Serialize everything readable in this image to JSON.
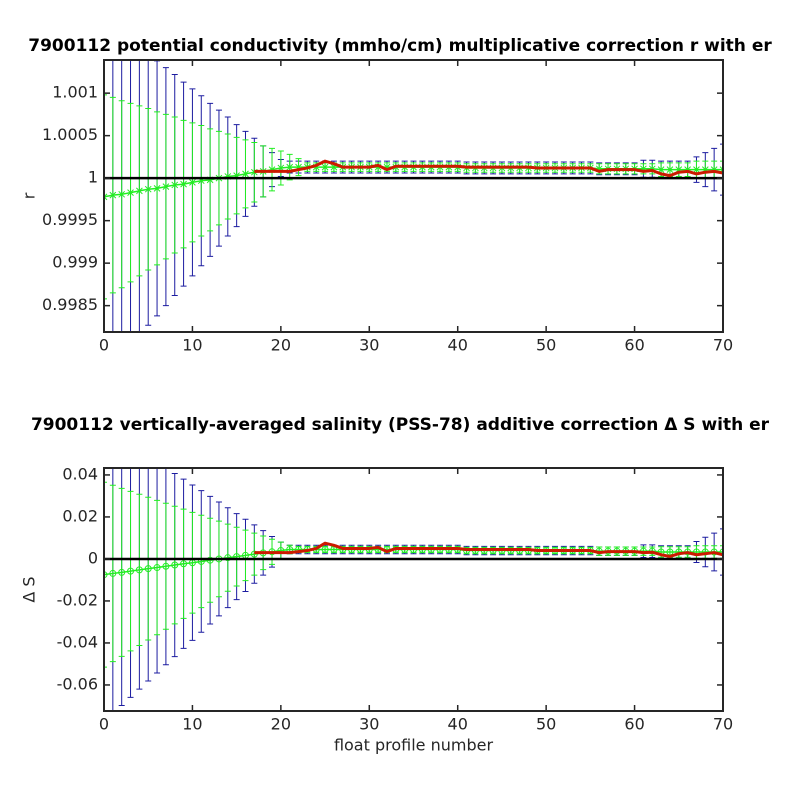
{
  "chart_data": [
    {
      "type": "errorbar",
      "title": "7900112 potential conductivity (mmho/cm) multiplicative correction r with er",
      "ylabel": "r",
      "x": [
        0,
        1,
        2,
        3,
        4,
        5,
        6,
        7,
        8,
        9,
        10,
        11,
        12,
        13,
        14,
        15,
        16,
        17,
        18,
        19,
        20,
        21,
        22,
        23,
        24,
        25,
        26,
        27,
        28,
        29,
        30,
        31,
        32,
        33,
        34,
        35,
        36,
        37,
        38,
        39,
        40,
        41,
        42,
        43,
        44,
        45,
        46,
        47,
        48,
        49,
        50,
        51,
        52,
        53,
        54,
        55,
        56,
        57,
        58,
        59,
        60,
        61,
        62,
        63,
        64,
        65,
        66,
        67,
        68,
        69,
        70
      ],
      "xlim": [
        0,
        70
      ],
      "xticks": [
        0,
        10,
        20,
        30,
        40,
        50,
        60,
        70
      ],
      "ylim": [
        0.99819,
        1.00139
      ],
      "yticks": [
        0.9985,
        0.999,
        0.9995,
        1,
        1.0005,
        1.001
      ],
      "hline": 1,
      "series": [
        {
          "style": "errorbar",
          "color": "#1c1ca0",
          "values": [
            0.99978,
            0.9998,
            0.99981,
            0.99983,
            0.99985,
            0.99987,
            0.99988,
            0.9999,
            0.99992,
            0.99993,
            0.99995,
            0.99997,
            0.99998,
            1,
            1.00002,
            1.00003,
            1.00005,
            1.00007,
            1.00008,
            1.0001,
            1.00012,
            1.00013,
            1.00013,
            1.00013,
            1.00013,
            1.00013,
            1.00013,
            1.00013,
            1.00013,
            1.00013,
            1.00013,
            1.00013,
            1.00013,
            1.00013,
            1.00013,
            1.00013,
            1.00013,
            1.00013,
            1.00013,
            1.00013,
            1.00013,
            1.00012,
            1.00012,
            1.00012,
            1.00012,
            1.00012,
            1.00012,
            1.00012,
            1.00012,
            1.00012,
            1.00012,
            1.00012,
            1.00012,
            1.00012,
            1.00012,
            1.00012,
            1.00011,
            1.00011,
            1.00011,
            1.00011,
            1.00011,
            1.00011,
            1.00011,
            1.0001,
            1.0001,
            1.0001,
            1.0001,
            1.0001,
            1.0001,
            1.0001,
            1.0001
          ],
          "errors": [
            0.0021,
            0.002,
            0.0019,
            0.0018,
            0.0017,
            0.0016,
            0.0015,
            0.0014,
            0.0013,
            0.0012,
            0.0011,
            0.001,
            0.0009,
            0.0008,
            0.0007,
            0.0006,
            0.0005,
            0.0004,
            0.0003,
            0.0002,
            0.0001,
            7e-05,
            7e-05,
            7e-05,
            7e-05,
            7e-05,
            7e-05,
            7e-05,
            7e-05,
            7e-05,
            7e-05,
            7e-05,
            7e-05,
            7e-05,
            7e-05,
            7e-05,
            7e-05,
            7e-05,
            7e-05,
            7e-05,
            7e-05,
            7e-05,
            7e-05,
            7e-05,
            7e-05,
            7e-05,
            7e-05,
            7e-05,
            7e-05,
            7e-05,
            7e-05,
            7e-05,
            7e-05,
            7e-05,
            7e-05,
            7e-05,
            7e-05,
            7e-05,
            7e-05,
            7e-05,
            7e-05,
            0.0001,
            0.0001,
            0.0001,
            0.0001,
            0.0001,
            0.0001,
            0.00015,
            0.0002,
            0.00025,
            0.0003
          ]
        },
        {
          "style": "errorbar",
          "color": "#22ee22",
          "line": true,
          "marker": "x",
          "values": [
            0.99978,
            0.9998,
            0.99981,
            0.99983,
            0.99985,
            0.99987,
            0.99988,
            0.9999,
            0.99992,
            0.99993,
            0.99995,
            0.99997,
            0.99998,
            1,
            1.00002,
            1.00003,
            1.00005,
            1.00007,
            1.00008,
            1.0001,
            1.00012,
            1.00013,
            1.00013,
            1.00013,
            1.00013,
            1.00013,
            1.00013,
            1.00013,
            1.00013,
            1.00013,
            1.00013,
            1.00013,
            1.00013,
            1.00013,
            1.00013,
            1.00013,
            1.00013,
            1.00013,
            1.00013,
            1.00013,
            1.00013,
            1.00012,
            1.00012,
            1.00012,
            1.00012,
            1.00012,
            1.00012,
            1.00012,
            1.00012,
            1.00012,
            1.00012,
            1.00012,
            1.00012,
            1.00012,
            1.00012,
            1.00012,
            1.00011,
            1.00011,
            1.00011,
            1.00011,
            1.00011,
            1.00011,
            1.00011,
            1.0001,
            1.0001,
            1.0001,
            1.0001,
            1.0001,
            1.0001,
            1.0001,
            1.0001
          ],
          "errors": [
            0.0012,
            0.00115,
            0.0011,
            0.00105,
            0.001,
            0.00095,
            0.0009,
            0.00085,
            0.0008,
            0.00075,
            0.0007,
            0.00065,
            0.0006,
            0.00055,
            0.0005,
            0.00045,
            0.0004,
            0.00035,
            0.0003,
            0.00025,
            0.0002,
            0.00015,
            0.0001,
            5e-05,
            5e-05,
            5e-05,
            5e-05,
            5e-05,
            5e-05,
            5e-05,
            5e-05,
            5e-05,
            5e-05,
            5e-05,
            5e-05,
            5e-05,
            5e-05,
            5e-05,
            5e-05,
            5e-05,
            5e-05,
            5e-05,
            5e-05,
            5e-05,
            5e-05,
            5e-05,
            5e-05,
            5e-05,
            5e-05,
            5e-05,
            5e-05,
            5e-05,
            5e-05,
            5e-05,
            5e-05,
            5e-05,
            6e-05,
            6e-05,
            6e-05,
            6e-05,
            6e-05,
            6e-05,
            6e-05,
            8e-05,
            8e-05,
            8e-05,
            8e-05,
            0.0001,
            0.0001,
            0.0001,
            0.0001
          ]
        },
        {
          "style": "line",
          "color": "#cc1a00",
          "width": 3,
          "values": [
            null,
            null,
            null,
            null,
            null,
            null,
            null,
            null,
            null,
            null,
            null,
            null,
            null,
            null,
            null,
            null,
            null,
            1.00008,
            1.00008,
            1.00008,
            1.00008,
            1.00008,
            1.0001,
            1.00012,
            1.00015,
            1.0002,
            1.00017,
            1.00013,
            1.00013,
            1.00013,
            1.00013,
            1.00015,
            1.0001,
            1.00014,
            1.00014,
            1.00014,
            1.00014,
            1.00014,
            1.00014,
            1.00014,
            1.00014,
            1.00013,
            1.00013,
            1.00013,
            1.00013,
            1.00013,
            1.00013,
            1.00013,
            1.00013,
            1.00012,
            1.00012,
            1.00012,
            1.00012,
            1.00012,
            1.00012,
            1.00012,
            1.00008,
            1.0001,
            1.0001,
            1.0001,
            1.0001,
            1.00008,
            1.00009,
            1.00005,
            1.00003,
            1.00007,
            1.00008,
            1.00005,
            1.00007,
            1.00008,
            1.00006
          ]
        }
      ]
    },
    {
      "type": "errorbar",
      "title": "7900112 vertically-averaged salinity (PSS-78) additive correction Δ S with er",
      "ylabel": "Δ S",
      "xlabel": "float profile number",
      "x": [
        0,
        1,
        2,
        3,
        4,
        5,
        6,
        7,
        8,
        9,
        10,
        11,
        12,
        13,
        14,
        15,
        16,
        17,
        18,
        19,
        20,
        21,
        22,
        23,
        24,
        25,
        26,
        27,
        28,
        29,
        30,
        31,
        32,
        33,
        34,
        35,
        36,
        37,
        38,
        39,
        40,
        41,
        42,
        43,
        44,
        45,
        46,
        47,
        48,
        49,
        50,
        51,
        52,
        53,
        54,
        55,
        56,
        57,
        58,
        59,
        60,
        61,
        62,
        63,
        64,
        65,
        66,
        67,
        68,
        69,
        70
      ],
      "xlim": [
        0,
        70
      ],
      "xticks": [
        0,
        10,
        20,
        30,
        40,
        50,
        60,
        70
      ],
      "ylim": [
        -0.0724,
        0.0433
      ],
      "yticks": [
        -0.06,
        -0.04,
        -0.02,
        0,
        0.02,
        0.04
      ],
      "hline": 0,
      "series": [
        {
          "style": "errorbar",
          "color": "#1c1ca0",
          "values": [
            -0.0075,
            -0.0069,
            -0.0064,
            -0.0058,
            -0.0052,
            -0.0046,
            -0.0041,
            -0.0035,
            -0.0029,
            -0.0023,
            -0.0018,
            -0.0012,
            -0.0006,
            0,
            0.0006,
            0.0011,
            0.0017,
            0.0023,
            0.0029,
            0.0034,
            0.004,
            0.0045,
            0.0045,
            0.0045,
            0.0045,
            0.0045,
            0.0045,
            0.0045,
            0.0045,
            0.0045,
            0.0045,
            0.0045,
            0.0045,
            0.0045,
            0.0045,
            0.0045,
            0.0045,
            0.0045,
            0.0045,
            0.0045,
            0.0045,
            0.004,
            0.004,
            0.004,
            0.004,
            0.004,
            0.004,
            0.004,
            0.004,
            0.004,
            0.004,
            0.004,
            0.004,
            0.004,
            0.004,
            0.004,
            0.0037,
            0.0037,
            0.0037,
            0.0037,
            0.0037,
            0.0037,
            0.0037,
            0.0033,
            0.0033,
            0.0033,
            0.0033,
            0.0033,
            0.0033,
            0.0033,
            0.0033
          ],
          "errors": [
            0.07,
            0.0667,
            0.0634,
            0.0601,
            0.0568,
            0.0535,
            0.0502,
            0.0469,
            0.0436,
            0.0403,
            0.037,
            0.0337,
            0.0304,
            0.0271,
            0.0238,
            0.0205,
            0.0172,
            0.0139,
            0.0106,
            0.0073,
            0.004,
            0.002,
            0.002,
            0.002,
            0.002,
            0.002,
            0.002,
            0.002,
            0.002,
            0.002,
            0.002,
            0.002,
            0.002,
            0.002,
            0.002,
            0.002,
            0.002,
            0.002,
            0.002,
            0.002,
            0.002,
            0.002,
            0.002,
            0.002,
            0.002,
            0.002,
            0.002,
            0.002,
            0.002,
            0.002,
            0.002,
            0.002,
            0.002,
            0.002,
            0.002,
            0.002,
            0.002,
            0.002,
            0.002,
            0.002,
            0.002,
            0.003,
            0.003,
            0.003,
            0.003,
            0.003,
            0.003,
            0.005,
            0.007,
            0.009,
            0.011
          ]
        },
        {
          "style": "errorbar",
          "color": "#22ee22",
          "line": true,
          "marker": "o",
          "values": [
            -0.0075,
            -0.0069,
            -0.0064,
            -0.0058,
            -0.0052,
            -0.0046,
            -0.0041,
            -0.0035,
            -0.0029,
            -0.0023,
            -0.0018,
            -0.0012,
            -0.0006,
            0,
            0.0006,
            0.0011,
            0.0017,
            0.0023,
            0.0029,
            0.0034,
            0.004,
            0.0045,
            0.0045,
            0.0045,
            0.0045,
            0.0045,
            0.0045,
            0.0045,
            0.0045,
            0.0045,
            0.0045,
            0.0045,
            0.0045,
            0.0045,
            0.0045,
            0.0045,
            0.0045,
            0.0045,
            0.0045,
            0.0045,
            0.0045,
            0.004,
            0.004,
            0.004,
            0.004,
            0.004,
            0.004,
            0.004,
            0.004,
            0.004,
            0.004,
            0.004,
            0.004,
            0.004,
            0.004,
            0.004,
            0.0037,
            0.0037,
            0.0037,
            0.0037,
            0.0037,
            0.0037,
            0.0037,
            0.0033,
            0.0033,
            0.0033,
            0.0033,
            0.0033,
            0.0033,
            0.0033,
            0.0033
          ],
          "errors": [
            0.044,
            0.042,
            0.04,
            0.038,
            0.036,
            0.034,
            0.032,
            0.03,
            0.028,
            0.026,
            0.024,
            0.022,
            0.02,
            0.018,
            0.016,
            0.014,
            0.012,
            0.01,
            0.008,
            0.006,
            0.004,
            0.002,
            0.0015,
            0.0015,
            0.0015,
            0.0015,
            0.0015,
            0.0015,
            0.0015,
            0.0015,
            0.0015,
            0.0015,
            0.0015,
            0.0015,
            0.0015,
            0.0015,
            0.0015,
            0.0015,
            0.0015,
            0.0015,
            0.0015,
            0.0015,
            0.0015,
            0.0015,
            0.0015,
            0.0015,
            0.0015,
            0.0015,
            0.0015,
            0.0015,
            0.0015,
            0.0015,
            0.0015,
            0.0015,
            0.0015,
            0.0015,
            0.002,
            0.002,
            0.002,
            0.002,
            0.002,
            0.002,
            0.002,
            0.0025,
            0.0025,
            0.0025,
            0.0025,
            0.003,
            0.003,
            0.003,
            0.003
          ]
        },
        {
          "style": "line",
          "color": "#cc1a00",
          "width": 3,
          "values": [
            null,
            null,
            null,
            null,
            null,
            null,
            null,
            null,
            null,
            null,
            null,
            null,
            null,
            null,
            null,
            null,
            null,
            0.003,
            0.003,
            0.003,
            0.003,
            0.003,
            0.0035,
            0.004,
            0.005,
            0.0075,
            0.0065,
            0.005,
            0.005,
            0.005,
            0.005,
            0.0055,
            0.0035,
            0.005,
            0.005,
            0.005,
            0.005,
            0.005,
            0.005,
            0.005,
            0.005,
            0.0045,
            0.0045,
            0.0045,
            0.0045,
            0.0045,
            0.0045,
            0.0045,
            0.0045,
            0.004,
            0.004,
            0.004,
            0.004,
            0.004,
            0.004,
            0.004,
            0.003,
            0.0035,
            0.0035,
            0.0035,
            0.0035,
            0.003,
            0.0032,
            0.002,
            0.0012,
            0.0025,
            0.003,
            0.002,
            0.0025,
            0.003,
            0.002
          ]
        }
      ]
    }
  ]
}
